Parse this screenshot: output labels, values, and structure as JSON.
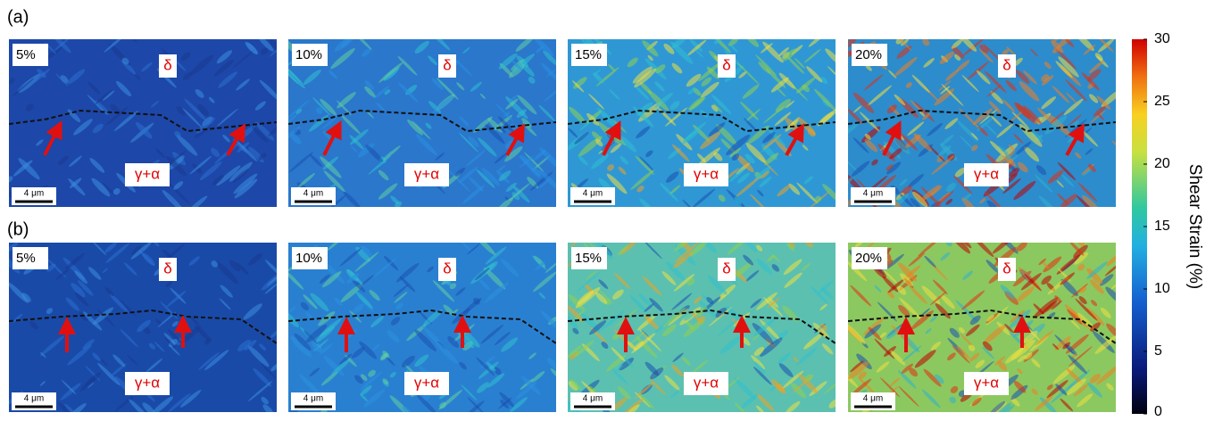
{
  "figure": {
    "rows": [
      {
        "label": "(a)",
        "panels": [
          {
            "strain": "5%",
            "top_phase": "δ",
            "bottom_phase": "γ+α",
            "scale_bar": "4 μm"
          },
          {
            "strain": "10%",
            "top_phase": "δ",
            "bottom_phase": "γ+α",
            "scale_bar": "4 μm"
          },
          {
            "strain": "15%",
            "top_phase": "δ",
            "bottom_phase": "γ+α",
            "scale_bar": "4 μm"
          },
          {
            "strain": "20%",
            "top_phase": "δ",
            "bottom_phase": "γ+α",
            "scale_bar": "4 μm"
          }
        ]
      },
      {
        "label": "(b)",
        "panels": [
          {
            "strain": "5%",
            "top_phase": "δ",
            "bottom_phase": "γ+α",
            "scale_bar": "4 μm"
          },
          {
            "strain": "10%",
            "top_phase": "δ",
            "bottom_phase": "γ+α",
            "scale_bar": "4 μm"
          },
          {
            "strain": "15%",
            "top_phase": "δ",
            "bottom_phase": "γ+α",
            "scale_bar": "4 μm"
          },
          {
            "strain": "20%",
            "top_phase": "δ",
            "bottom_phase": "γ+α",
            "scale_bar": "4 μm"
          }
        ]
      }
    ],
    "colorbar": {
      "label": "Shear Strain (%)",
      "lim": [
        0,
        30
      ],
      "ticks": [
        0,
        5,
        10,
        15,
        20,
        25,
        30
      ]
    }
  }
}
